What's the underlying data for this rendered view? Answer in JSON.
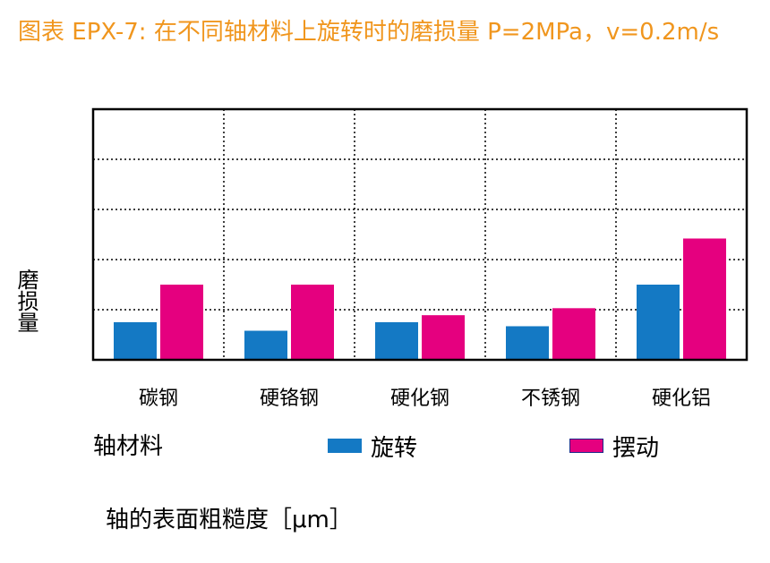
{
  "title": "图表 EPX-7: 在不同轴材料上旋转时的磨损量 P=2MPa，v=0.2m/s",
  "footer": "轴的表面粗糙度［μm］",
  "colors": {
    "rotation": "#1479c4",
    "swing": "#e5007f",
    "title": "#f0961e"
  },
  "chart_data": {
    "type": "bar",
    "title": "图表 EPX-7: 在不同轴材料上旋转时的磨损量 P=2MPa，v=0.2m/s",
    "xlabel": "轴材料",
    "ylabel": "磨损量",
    "categories": [
      "碳钢",
      "硬铬钢",
      "硬化钢",
      "不锈钢",
      "硬化铝"
    ],
    "series": [
      {
        "name": "旋转",
        "values": [
          0.75,
          0.58,
          0.75,
          0.67,
          1.5
        ]
      },
      {
        "name": "摆动",
        "values": [
          1.5,
          1.5,
          0.89,
          1.03,
          2.42
        ]
      }
    ],
    "ylim": [
      0,
      5
    ],
    "grid": true,
    "legend": "bottom"
  }
}
